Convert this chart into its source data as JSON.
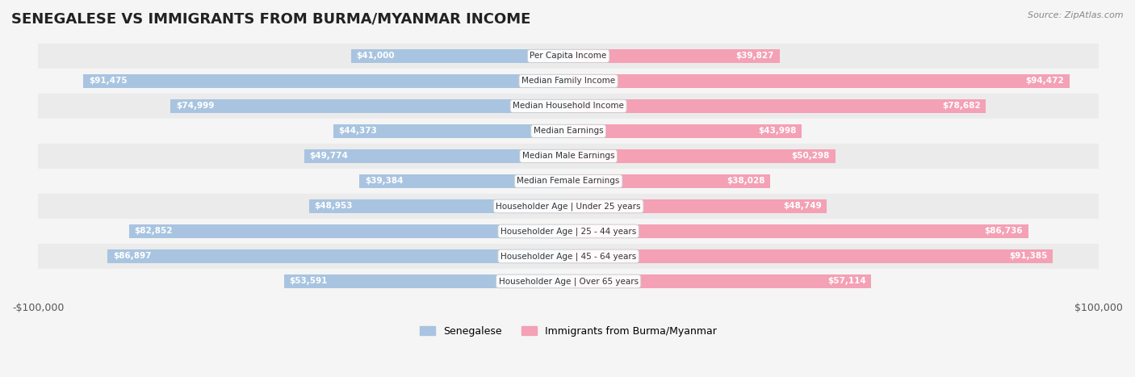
{
  "title": "SENEGALESE VS IMMIGRANTS FROM BURMA/MYANMAR INCOME",
  "source": "Source: ZipAtlas.com",
  "categories": [
    "Per Capita Income",
    "Median Family Income",
    "Median Household Income",
    "Median Earnings",
    "Median Male Earnings",
    "Median Female Earnings",
    "Householder Age | Under 25 years",
    "Householder Age | 25 - 44 years",
    "Householder Age | 45 - 64 years",
    "Householder Age | Over 65 years"
  ],
  "senegalese_values": [
    41000,
    91475,
    74999,
    44373,
    49774,
    39384,
    48953,
    82852,
    86897,
    53591
  ],
  "burma_values": [
    39827,
    94472,
    78682,
    43998,
    50298,
    38028,
    48749,
    86736,
    91385,
    57114
  ],
  "senegalese_labels": [
    "$41,000",
    "$91,475",
    "$74,999",
    "$44,373",
    "$49,774",
    "$39,384",
    "$48,953",
    "$82,852",
    "$86,897",
    "$53,591"
  ],
  "burma_labels": [
    "$39,827",
    "$94,472",
    "$78,682",
    "$43,998",
    "$50,298",
    "$38,028",
    "$48,749",
    "$86,736",
    "$91,385",
    "$57,114"
  ],
  "max_value": 100000,
  "color_senegalese": "#a8c4e0",
  "color_burma": "#f4a0b5",
  "color_senegalese_dark": "#7bafd4",
  "color_burma_dark": "#e87a9a",
  "bg_color": "#f5f5f5",
  "row_bg_even": "#ebebeb",
  "row_bg_odd": "#f5f5f5",
  "legend_label_senegalese": "Senegalese",
  "legend_label_burma": "Immigrants from Burma/Myanmar",
  "xlabel_left": "-$100,000",
  "xlabel_right": "$100,000"
}
